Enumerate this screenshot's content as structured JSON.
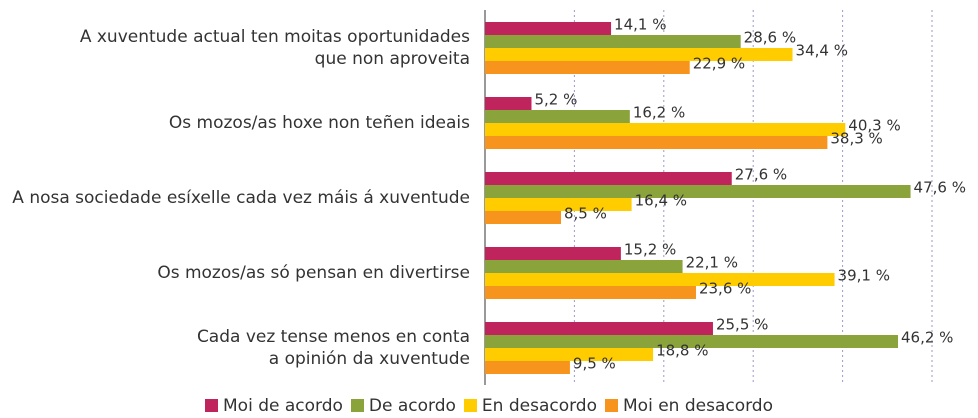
{
  "chart_data": {
    "type": "bar",
    "orientation": "horizontal",
    "categories": [
      "A xuventude actual ten moitas oportunidades\nque non aproveita",
      "Os mozos/as hoxe non teñen ideais",
      "A nosa sociedade esíxelle cada vez máis á xuventude",
      "Os mozos/as só pensan en divertirse",
      "Cada vez tense menos en conta\na opinión da xuventude"
    ],
    "series": [
      {
        "name": "Moi de acordo",
        "color": "#c0245c",
        "values": [
          14.1,
          5.2,
          27.6,
          15.2,
          25.5
        ],
        "value_labels": [
          "14,1 %",
          "5,2 %",
          "27,6 %",
          "15,2 %",
          "25,5 %"
        ]
      },
      {
        "name": "De acordo",
        "color": "#8aa33a",
        "values": [
          28.6,
          16.2,
          47.6,
          22.1,
          46.2
        ],
        "value_labels": [
          "28,6 %",
          "16,2 %",
          "47,6 %",
          "22,1 %",
          "46,2 %"
        ]
      },
      {
        "name": "En desacordo",
        "color": "#ffcc00",
        "values": [
          34.4,
          40.3,
          16.4,
          39.1,
          18.8
        ],
        "value_labels": [
          "34,4 %",
          "40,3 %",
          "16,4 %",
          "39,1 %",
          "18,8 %"
        ]
      },
      {
        "name": "Moi en desacordo",
        "color": "#f7941d",
        "values": [
          22.9,
          38.3,
          8.5,
          23.6,
          9.5
        ],
        "value_labels": [
          "22,9 %",
          "38,3 %",
          "8,5 %",
          "23,6 %",
          "9,5 %"
        ]
      }
    ],
    "xlim": [
      0,
      50
    ],
    "xticks": [
      0,
      10,
      20,
      30,
      40,
      50
    ],
    "grid": true,
    "legend": "bottom"
  }
}
